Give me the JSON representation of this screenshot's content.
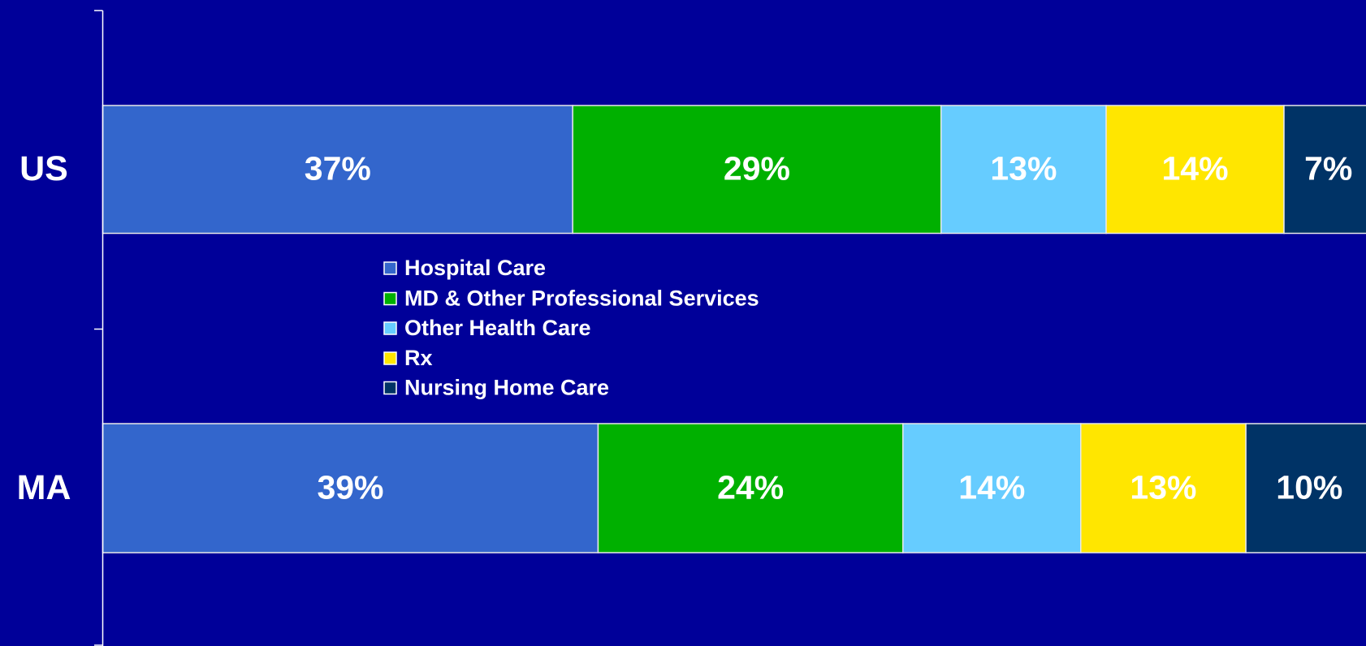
{
  "chart_data": {
    "type": "stacked-barh",
    "categories": [
      "US",
      "MA"
    ],
    "series": [
      {
        "name": "Hospital Care",
        "color": "#3366cc",
        "values": [
          37,
          39
        ],
        "value_labels": [
          "37%",
          "39%"
        ]
      },
      {
        "name": "MD & Other Professional Services",
        "color": "#00b000",
        "values": [
          29,
          24
        ],
        "value_labels": [
          "29%",
          "24%"
        ]
      },
      {
        "name": "Other Health Care",
        "color": "#66ccff",
        "values": [
          13,
          14
        ],
        "value_labels": [
          "13%",
          "14%"
        ]
      },
      {
        "name": "Rx",
        "color": "#ffe600",
        "values": [
          14,
          13
        ],
        "value_labels": [
          "14%",
          "13%"
        ]
      },
      {
        "name": "Nursing Home Care",
        "color": "#003366",
        "values": [
          7,
          10
        ],
        "value_labels": [
          "7%",
          "10%"
        ]
      }
    ],
    "xlim": [
      0,
      100
    ],
    "background": "#000099"
  }
}
